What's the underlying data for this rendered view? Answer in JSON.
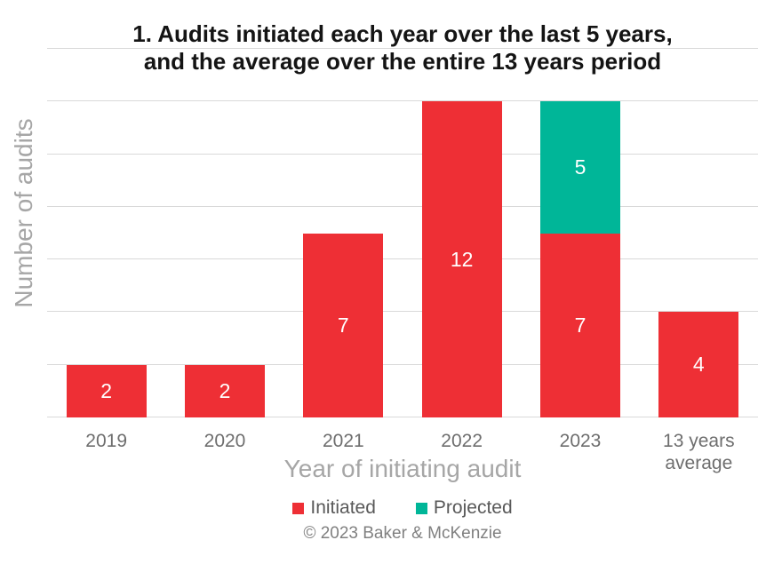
{
  "title": {
    "line1": "1. Audits initiated each year over the last 5 years,",
    "line2": "and the average over the entire 13 years period"
  },
  "chart_data": {
    "type": "bar",
    "stacked": true,
    "title": "1. Audits initiated each year over the last 5 years, and the average over the entire 13 years period",
    "categories": [
      "2019",
      "2020",
      "2021",
      "2022",
      "2023",
      "13 years average"
    ],
    "series": [
      {
        "name": "Initiated",
        "color": "#ee2f35",
        "values": [
          2,
          2,
          7,
          12,
          7,
          4
        ]
      },
      {
        "name": "Projected",
        "color": "#00b698",
        "values": [
          0,
          0,
          0,
          0,
          5,
          0
        ]
      }
    ],
    "xlabel": "Year of initiating audit",
    "ylabel": "Number of audits",
    "ylim": [
      0,
      14
    ],
    "grid": true,
    "grid_step": 2,
    "y_tick_labels_shown": false,
    "bar_value_labels": "white, centered in each segment",
    "legend_position": "bottom"
  },
  "footer": {
    "copyright": "© 2023 Baker & McKenzie"
  },
  "colors": {
    "initiated": "#ee2f35",
    "projected": "#00b698",
    "gridline": "#d9d9d9",
    "axis_title_text": "#a6a6a6",
    "tick_text": "#6e6e6e",
    "legend_text": "#595959",
    "copyright_text": "#808080",
    "title_text": "#141414",
    "background": "#ffffff"
  }
}
